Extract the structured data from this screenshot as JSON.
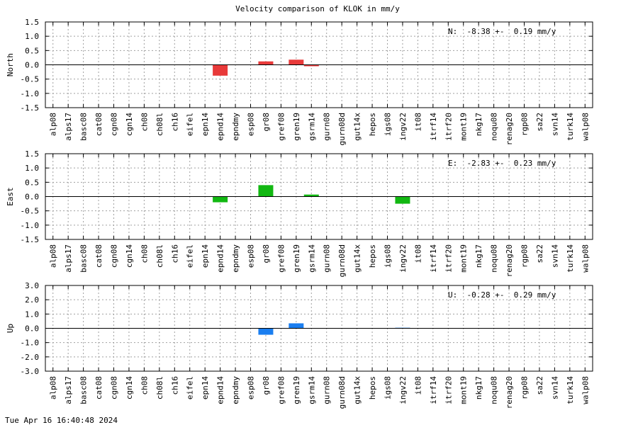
{
  "title": "Velocity comparison of KLOK in mm/y",
  "timestamp": "Tue Apr 16 16:40:48 2024",
  "chart_data": [
    {
      "type": "bar",
      "ylabel": "North",
      "annotation": "N:  -8.38 +-  0.19 mm/y",
      "ylim": [
        -1.5,
        1.5
      ],
      "yticks": [
        1.5,
        1.0,
        0.5,
        0.0,
        -0.5,
        -1.0,
        -1.5
      ],
      "ytick_labels": [
        "1.5",
        "1.0",
        "0.5",
        "0.0",
        "-0.5",
        "-1.0",
        "-1.5"
      ],
      "color": "#e83a3a",
      "grid": true,
      "categories": [
        "alp08",
        "alps17",
        "basc08",
        "cat08",
        "cgn08",
        "cgn14",
        "ch08",
        "ch08l",
        "ch16",
        "eifel",
        "epn14",
        "epnd14",
        "epndmy",
        "esp08",
        "gr08",
        "gref08",
        "gren19",
        "gsrm14",
        "gurn08",
        "gurn08d",
        "gut14x",
        "hepos",
        "igs08",
        "ingv22",
        "it08",
        "itrf14",
        "itrf20",
        "mont19",
        "nkg17",
        "noqu08",
        "renag20",
        "rgp08",
        "sa22",
        "svn14",
        "turk14",
        "walp08"
      ],
      "values": [
        null,
        null,
        null,
        null,
        null,
        null,
        null,
        null,
        null,
        null,
        null,
        -0.38,
        null,
        null,
        0.12,
        null,
        0.18,
        -0.05,
        null,
        null,
        null,
        null,
        null,
        null,
        null,
        null,
        null,
        null,
        null,
        null,
        null,
        null,
        null,
        null,
        null,
        null
      ]
    },
    {
      "type": "bar",
      "ylabel": "East",
      "annotation": "E:  -2.83 +-  0.23 mm/y",
      "ylim": [
        -1.5,
        1.5
      ],
      "yticks": [
        1.5,
        1.0,
        0.5,
        0.0,
        -0.5,
        -1.0,
        -1.5
      ],
      "ytick_labels": [
        "1.5",
        "1.0",
        "0.5",
        "0.0",
        "-0.5",
        "-1.0",
        "-1.5"
      ],
      "color": "#12b812",
      "grid": true,
      "categories": [
        "alp08",
        "alps17",
        "basc08",
        "cat08",
        "cgn08",
        "cgn14",
        "ch08",
        "ch08l",
        "ch16",
        "eifel",
        "epn14",
        "epnd14",
        "epndmy",
        "esp08",
        "gr08",
        "gref08",
        "gren19",
        "gsrm14",
        "gurn08",
        "gurn08d",
        "gut14x",
        "hepos",
        "igs08",
        "ingv22",
        "it08",
        "itrf14",
        "itrf20",
        "mont19",
        "nkg17",
        "noqu08",
        "renag20",
        "rgp08",
        "sa22",
        "svn14",
        "turk14",
        "walp08"
      ],
      "values": [
        null,
        null,
        null,
        null,
        null,
        null,
        null,
        null,
        null,
        null,
        null,
        -0.2,
        null,
        null,
        0.4,
        null,
        null,
        0.07,
        null,
        null,
        null,
        null,
        null,
        -0.25,
        null,
        null,
        null,
        null,
        null,
        null,
        null,
        null,
        null,
        null,
        null,
        null
      ]
    },
    {
      "type": "bar",
      "ylabel": "Up",
      "annotation": "U:  -0.28 +-  0.29 mm/y",
      "ylim": [
        -3.0,
        3.0
      ],
      "yticks": [
        3.0,
        2.0,
        1.0,
        0.0,
        -1.0,
        -2.0,
        -3.0
      ],
      "ytick_labels": [
        "3.0",
        "2.0",
        "1.0",
        "0.0",
        "-1.0",
        "-2.0",
        "-3.0"
      ],
      "color": "#1a7ef0",
      "grid": true,
      "categories": [
        "alp08",
        "alps17",
        "basc08",
        "cat08",
        "cgn08",
        "cgn14",
        "ch08",
        "ch08l",
        "ch16",
        "eifel",
        "epn14",
        "epnd14",
        "epndmy",
        "esp08",
        "gr08",
        "gref08",
        "gren19",
        "gsrm14",
        "gurn08",
        "gurn08d",
        "gut14x",
        "hepos",
        "igs08",
        "ingv22",
        "it08",
        "itrf14",
        "itrf20",
        "mont19",
        "nkg17",
        "noqu08",
        "renag20",
        "rgp08",
        "sa22",
        "svn14",
        "turk14",
        "walp08"
      ],
      "values": [
        null,
        null,
        null,
        null,
        null,
        null,
        null,
        null,
        null,
        null,
        null,
        null,
        null,
        null,
        -0.45,
        null,
        0.35,
        null,
        null,
        null,
        null,
        null,
        null,
        0.04,
        null,
        null,
        null,
        null,
        null,
        null,
        null,
        null,
        null,
        null,
        null,
        null
      ]
    }
  ]
}
